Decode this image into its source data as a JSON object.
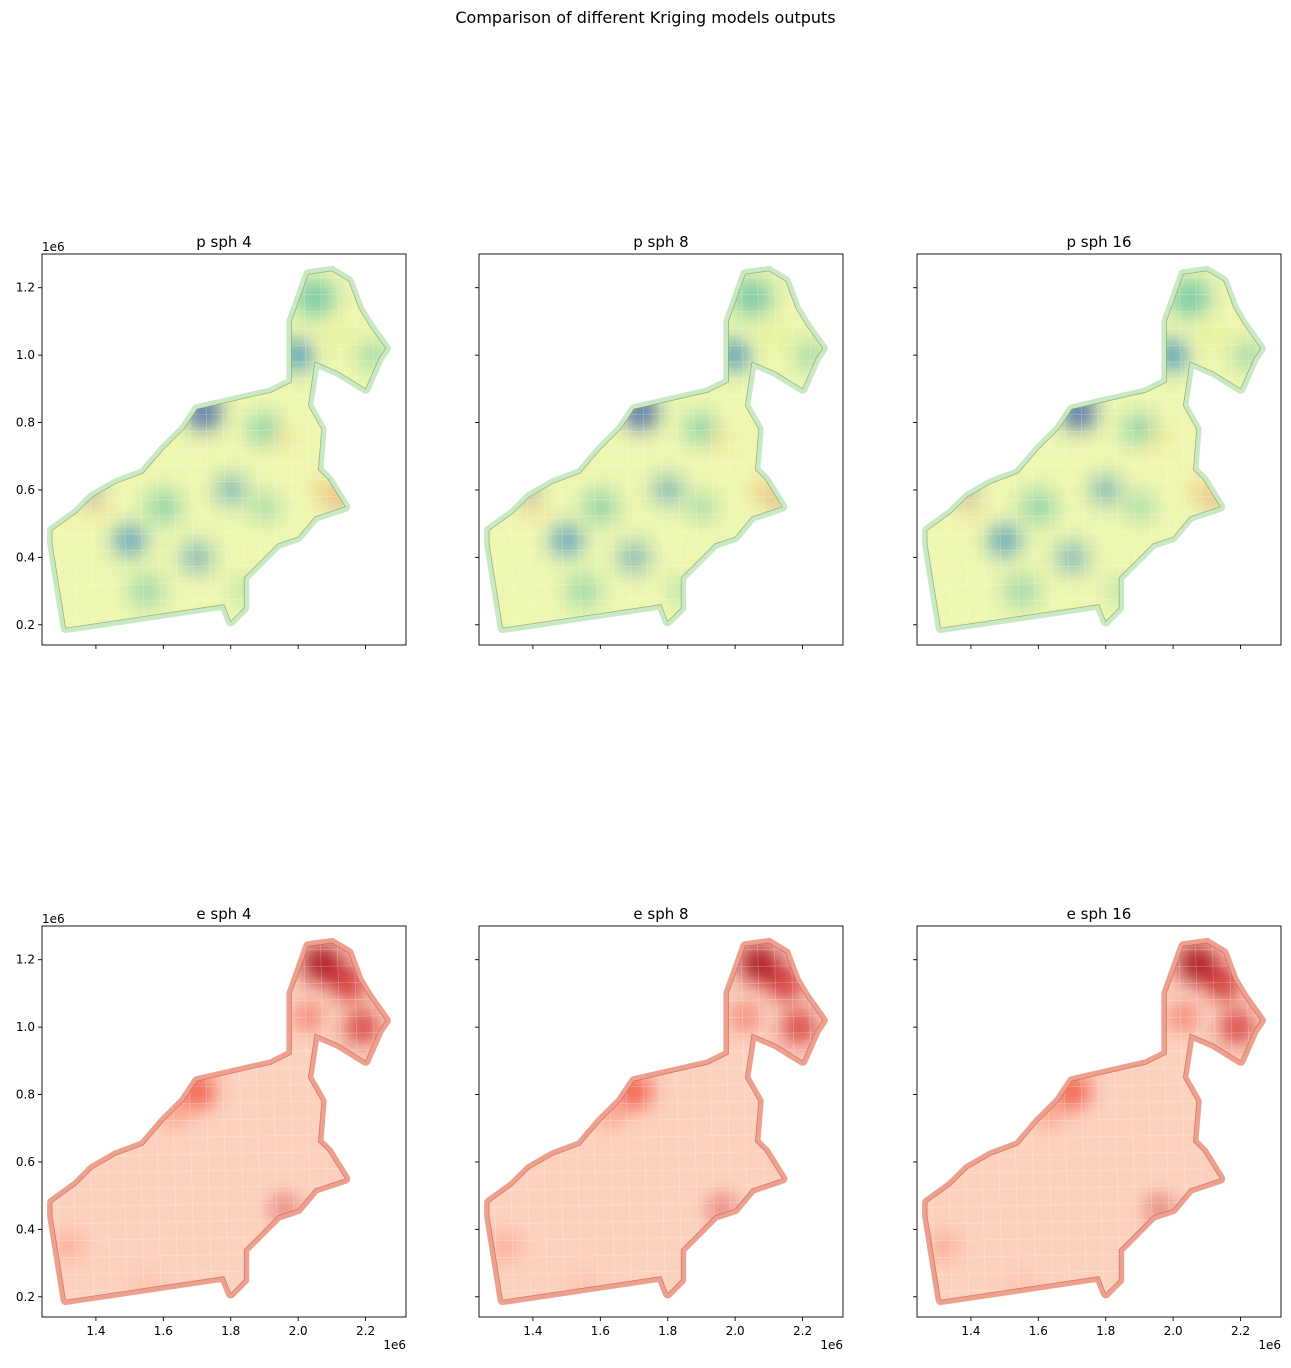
{
  "figure": {
    "suptitle": "Comparison of different Kriging models outputs"
  },
  "chart_data": [
    {
      "type": "heatmap",
      "title": "p sph 4",
      "xlim": [
        1.24,
        2.32
      ],
      "ylim": [
        0.14,
        1.3
      ],
      "x_scale_label": "",
      "y_scale_label": "1e6",
      "x_ticks": [],
      "y_ticks": [
        "0.2",
        "0.4",
        "0.6",
        "0.8",
        "1.0",
        "1.2"
      ],
      "colormap": "Spectral_r",
      "map_variant": "p",
      "hotspot_strength": 1.0
    },
    {
      "type": "heatmap",
      "title": "p sph 8",
      "xlim": [
        1.24,
        2.32
      ],
      "ylim": [
        0.14,
        1.3
      ],
      "x_scale_label": "",
      "y_scale_label": "",
      "x_ticks": [],
      "y_ticks": [],
      "colormap": "Spectral_r",
      "map_variant": "p",
      "hotspot_strength": 0.9
    },
    {
      "type": "heatmap",
      "title": "p sph 16",
      "xlim": [
        1.24,
        2.32
      ],
      "ylim": [
        0.14,
        1.3
      ],
      "x_scale_label": "",
      "y_scale_label": "",
      "x_ticks": [],
      "y_ticks": [],
      "colormap": "Spectral_r",
      "map_variant": "p",
      "hotspot_strength": 0.85
    },
    {
      "type": "heatmap",
      "title": "e sph 4",
      "xlim": [
        1.24,
        2.32
      ],
      "ylim": [
        0.14,
        1.3
      ],
      "x_scale_label": "1e6",
      "y_scale_label": "1e6",
      "x_ticks": [
        "1.4",
        "1.6",
        "1.8",
        "2.0",
        "2.2"
      ],
      "y_ticks": [
        "0.2",
        "0.4",
        "0.6",
        "0.8",
        "1.0",
        "1.2"
      ],
      "colormap": "Reds",
      "map_variant": "e",
      "hotspot_strength": 1.0
    },
    {
      "type": "heatmap",
      "title": "e sph 8",
      "xlim": [
        1.24,
        2.32
      ],
      "ylim": [
        0.14,
        1.3
      ],
      "x_scale_label": "1e6",
      "y_scale_label": "",
      "x_ticks": [
        "1.4",
        "1.6",
        "1.8",
        "2.0",
        "2.2"
      ],
      "y_ticks": [],
      "colormap": "Reds",
      "map_variant": "e",
      "hotspot_strength": 0.95
    },
    {
      "type": "heatmap",
      "title": "e sph 16",
      "xlim": [
        1.24,
        2.32
      ],
      "ylim": [
        0.14,
        1.3
      ],
      "x_scale_label": "1e6",
      "y_scale_label": "",
      "x_ticks": [
        "1.4",
        "1.6",
        "1.8",
        "2.0",
        "2.2"
      ],
      "y_ticks": [],
      "colormap": "Reds",
      "map_variant": "e",
      "hotspot_strength": 0.9
    }
  ]
}
